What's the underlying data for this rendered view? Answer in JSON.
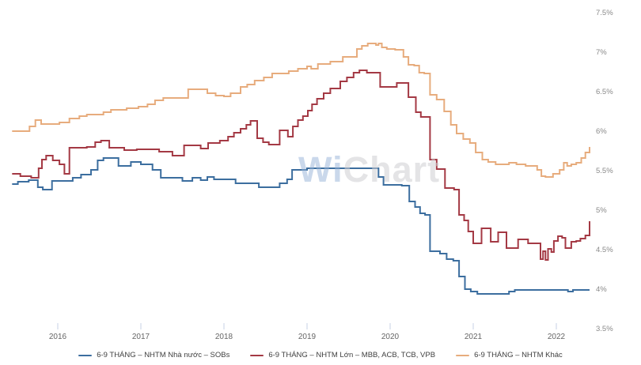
{
  "watermark": {
    "part1": "Wi",
    "part2": "Chart"
  },
  "axes": {
    "y_label_color": "#8a8a8a",
    "x_label_color": "#666666",
    "tick_color": "#c7d0e4"
  },
  "chart_data": {
    "type": "line",
    "step_interpolation": true,
    "grid": false,
    "legend_position": "bottom",
    "title": "",
    "xlabel": "",
    "ylabel": "",
    "xlim": [
      2015.38,
      2022.46
    ],
    "ylim": [
      3.5,
      7.5
    ],
    "x_ticks": [
      {
        "value": 2016,
        "label": "2016"
      },
      {
        "value": 2017,
        "label": "2017"
      },
      {
        "value": 2018,
        "label": "2018"
      },
      {
        "value": 2019,
        "label": "2019"
      },
      {
        "value": 2020,
        "label": "2020"
      },
      {
        "value": 2021,
        "label": "2021"
      },
      {
        "value": 2022,
        "label": "2022"
      }
    ],
    "y_ticks": [
      {
        "value": 7.5,
        "label": "7.5%"
      },
      {
        "value": 7.0,
        "label": "7%"
      },
      {
        "value": 6.5,
        "label": "6.5%"
      },
      {
        "value": 6.0,
        "label": "6%"
      },
      {
        "value": 5.5,
        "label": "5.5%"
      },
      {
        "value": 5.0,
        "label": "5%"
      },
      {
        "value": 4.5,
        "label": "4.5%"
      },
      {
        "value": 4.0,
        "label": "4%"
      },
      {
        "value": 3.5,
        "label": "3.5%"
      }
    ],
    "series": [
      {
        "name": "6-9 THÁNG – NHTM Nhà nước – SOBs",
        "color": "#3c6e9f",
        "points": [
          [
            2015.45,
            5.33
          ],
          [
            2015.52,
            5.36
          ],
          [
            2015.65,
            5.38
          ],
          [
            2015.76,
            5.29
          ],
          [
            2015.82,
            5.26
          ],
          [
            2015.93,
            5.37
          ],
          [
            2016.18,
            5.41
          ],
          [
            2016.28,
            5.45
          ],
          [
            2016.4,
            5.51
          ],
          [
            2016.48,
            5.63
          ],
          [
            2016.55,
            5.66
          ],
          [
            2016.73,
            5.56
          ],
          [
            2016.88,
            5.61
          ],
          [
            2017.0,
            5.58
          ],
          [
            2017.14,
            5.51
          ],
          [
            2017.24,
            5.41
          ],
          [
            2017.5,
            5.37
          ],
          [
            2017.62,
            5.41
          ],
          [
            2017.72,
            5.38
          ],
          [
            2017.8,
            5.42
          ],
          [
            2017.88,
            5.39
          ],
          [
            2018.14,
            5.34
          ],
          [
            2018.42,
            5.29
          ],
          [
            2018.67,
            5.34
          ],
          [
            2018.76,
            5.39
          ],
          [
            2018.82,
            5.51
          ],
          [
            2019.0,
            5.53
          ],
          [
            2019.86,
            5.42
          ],
          [
            2019.92,
            5.32
          ],
          [
            2020.14,
            5.31
          ],
          [
            2020.23,
            5.11
          ],
          [
            2020.3,
            5.04
          ],
          [
            2020.36,
            4.96
          ],
          [
            2020.42,
            4.94
          ],
          [
            2020.48,
            4.48
          ],
          [
            2020.6,
            4.45
          ],
          [
            2020.68,
            4.38
          ],
          [
            2020.76,
            4.36
          ],
          [
            2020.83,
            4.16
          ],
          [
            2020.9,
            4.0
          ],
          [
            2020.97,
            3.97
          ],
          [
            2021.05,
            3.94
          ],
          [
            2021.43,
            3.97
          ],
          [
            2021.5,
            3.99
          ],
          [
            2022.14,
            3.97
          ],
          [
            2022.2,
            3.99
          ],
          [
            2022.4,
            3.99
          ]
        ]
      },
      {
        "name": "6-9 THÁNG – NHTM Lớn – MBB, ACB, TCB, VPB",
        "color": "#a43944",
        "points": [
          [
            2015.45,
            5.46
          ],
          [
            2015.55,
            5.43
          ],
          [
            2015.68,
            5.41
          ],
          [
            2015.77,
            5.53
          ],
          [
            2015.81,
            5.64
          ],
          [
            2015.86,
            5.69
          ],
          [
            2015.94,
            5.63
          ],
          [
            2016.02,
            5.58
          ],
          [
            2016.08,
            5.46
          ],
          [
            2016.14,
            5.79
          ],
          [
            2016.35,
            5.8
          ],
          [
            2016.45,
            5.86
          ],
          [
            2016.52,
            5.88
          ],
          [
            2016.62,
            5.79
          ],
          [
            2016.8,
            5.76
          ],
          [
            2016.95,
            5.77
          ],
          [
            2017.22,
            5.74
          ],
          [
            2017.38,
            5.69
          ],
          [
            2017.52,
            5.82
          ],
          [
            2017.72,
            5.78
          ],
          [
            2017.81,
            5.85
          ],
          [
            2017.95,
            5.88
          ],
          [
            2018.05,
            5.93
          ],
          [
            2018.12,
            5.98
          ],
          [
            2018.2,
            6.03
          ],
          [
            2018.27,
            6.08
          ],
          [
            2018.32,
            6.13
          ],
          [
            2018.4,
            5.91
          ],
          [
            2018.47,
            5.86
          ],
          [
            2018.54,
            5.83
          ],
          [
            2018.67,
            6.01
          ],
          [
            2018.77,
            5.93
          ],
          [
            2018.83,
            6.06
          ],
          [
            2018.89,
            6.14
          ],
          [
            2018.95,
            6.19
          ],
          [
            2019.01,
            6.26
          ],
          [
            2019.06,
            6.34
          ],
          [
            2019.12,
            6.41
          ],
          [
            2019.2,
            6.48
          ],
          [
            2019.28,
            6.54
          ],
          [
            2019.4,
            6.63
          ],
          [
            2019.48,
            6.68
          ],
          [
            2019.56,
            6.74
          ],
          [
            2019.63,
            6.77
          ],
          [
            2019.72,
            6.74
          ],
          [
            2019.88,
            6.56
          ],
          [
            2020.08,
            6.61
          ],
          [
            2020.22,
            6.43
          ],
          [
            2020.31,
            6.24
          ],
          [
            2020.37,
            6.18
          ],
          [
            2020.48,
            5.64
          ],
          [
            2020.56,
            5.52
          ],
          [
            2020.66,
            5.28
          ],
          [
            2020.77,
            5.26
          ],
          [
            2020.83,
            4.94
          ],
          [
            2020.89,
            4.87
          ],
          [
            2020.94,
            4.73
          ],
          [
            2021.0,
            4.58
          ],
          [
            2021.1,
            4.77
          ],
          [
            2021.21,
            4.6
          ],
          [
            2021.3,
            4.72
          ],
          [
            2021.4,
            4.52
          ],
          [
            2021.54,
            4.63
          ],
          [
            2021.66,
            4.58
          ],
          [
            2021.81,
            4.38
          ],
          [
            2021.84,
            4.48
          ],
          [
            2021.87,
            4.37
          ],
          [
            2021.9,
            4.51
          ],
          [
            2021.94,
            4.47
          ],
          [
            2021.97,
            4.61
          ],
          [
            2022.02,
            4.67
          ],
          [
            2022.07,
            4.65
          ],
          [
            2022.11,
            4.52
          ],
          [
            2022.18,
            4.6
          ],
          [
            2022.24,
            4.61
          ],
          [
            2022.29,
            4.64
          ],
          [
            2022.35,
            4.68
          ],
          [
            2022.4,
            4.86
          ]
        ]
      },
      {
        "name": "6-9 THÁNG – NHTM Khác",
        "color": "#e7ac7d",
        "points": [
          [
            2015.45,
            6.0
          ],
          [
            2015.66,
            6.06
          ],
          [
            2015.73,
            6.14
          ],
          [
            2015.8,
            6.09
          ],
          [
            2016.02,
            6.11
          ],
          [
            2016.14,
            6.16
          ],
          [
            2016.26,
            6.19
          ],
          [
            2016.35,
            6.21
          ],
          [
            2016.55,
            6.24
          ],
          [
            2016.64,
            6.27
          ],
          [
            2016.83,
            6.29
          ],
          [
            2016.97,
            6.31
          ],
          [
            2017.08,
            6.34
          ],
          [
            2017.17,
            6.39
          ],
          [
            2017.27,
            6.42
          ],
          [
            2017.57,
            6.53
          ],
          [
            2017.8,
            6.48
          ],
          [
            2017.9,
            6.45
          ],
          [
            2018.0,
            6.44
          ],
          [
            2018.08,
            6.48
          ],
          [
            2018.2,
            6.56
          ],
          [
            2018.28,
            6.59
          ],
          [
            2018.37,
            6.64
          ],
          [
            2018.48,
            6.68
          ],
          [
            2018.58,
            6.73
          ],
          [
            2018.78,
            6.76
          ],
          [
            2018.89,
            6.79
          ],
          [
            2019.0,
            6.82
          ],
          [
            2019.05,
            6.79
          ],
          [
            2019.13,
            6.85
          ],
          [
            2019.28,
            6.88
          ],
          [
            2019.43,
            6.94
          ],
          [
            2019.6,
            7.04
          ],
          [
            2019.66,
            7.08
          ],
          [
            2019.73,
            7.11
          ],
          [
            2019.83,
            7.09
          ],
          [
            2019.86,
            7.11
          ],
          [
            2019.9,
            7.06
          ],
          [
            2019.96,
            7.04
          ],
          [
            2020.06,
            7.03
          ],
          [
            2020.16,
            6.94
          ],
          [
            2020.22,
            6.84
          ],
          [
            2020.29,
            6.83
          ],
          [
            2020.35,
            6.74
          ],
          [
            2020.41,
            6.73
          ],
          [
            2020.48,
            6.46
          ],
          [
            2020.56,
            6.4
          ],
          [
            2020.65,
            6.25
          ],
          [
            2020.73,
            6.08
          ],
          [
            2020.8,
            5.97
          ],
          [
            2020.88,
            5.9
          ],
          [
            2020.96,
            5.85
          ],
          [
            2021.03,
            5.73
          ],
          [
            2021.11,
            5.64
          ],
          [
            2021.18,
            5.61
          ],
          [
            2021.27,
            5.58
          ],
          [
            2021.43,
            5.6
          ],
          [
            2021.52,
            5.58
          ],
          [
            2021.63,
            5.56
          ],
          [
            2021.77,
            5.51
          ],
          [
            2021.82,
            5.43
          ],
          [
            2021.87,
            5.42
          ],
          [
            2021.96,
            5.46
          ],
          [
            2022.04,
            5.51
          ],
          [
            2022.09,
            5.6
          ],
          [
            2022.13,
            5.56
          ],
          [
            2022.18,
            5.58
          ],
          [
            2022.24,
            5.6
          ],
          [
            2022.3,
            5.66
          ],
          [
            2022.35,
            5.73
          ],
          [
            2022.4,
            5.8
          ]
        ]
      }
    ]
  }
}
